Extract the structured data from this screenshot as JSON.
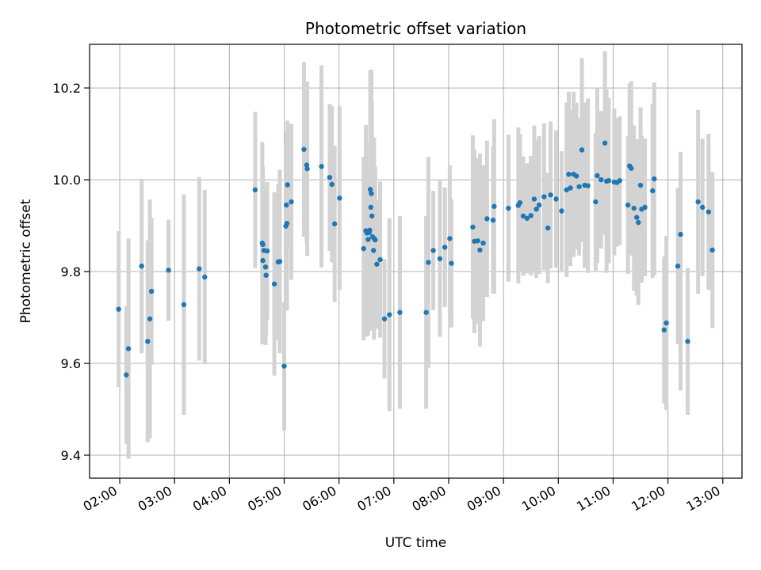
{
  "chart_data": {
    "type": "scatter",
    "title": "Photometric offset variation",
    "xlabel": "UTC time",
    "ylabel": "Photometric offset",
    "xlim": [
      1.45,
      13.35
    ],
    "ylim": [
      9.35,
      10.295
    ],
    "grid": true,
    "x_ticks": [
      2,
      3,
      4,
      5,
      6,
      7,
      8,
      9,
      10,
      11,
      12,
      13
    ],
    "x_tick_labels": [
      "02:00",
      "03:00",
      "04:00",
      "05:00",
      "06:00",
      "07:00",
      "08:00",
      "09:00",
      "10:00",
      "11:00",
      "12:00",
      "13:00"
    ],
    "y_ticks": [
      9.4,
      9.6,
      9.8,
      10.0,
      10.2
    ],
    "y_tick_labels": [
      "9.4",
      "9.6",
      "9.8",
      "10.0",
      "10.2"
    ],
    "series": [
      {
        "name": "Photometric offset",
        "marker_color": "#1f77b4",
        "errorbar_color": "#d3d3d3",
        "x": [
          1.98,
          2.12,
          2.16,
          2.4,
          2.51,
          2.55,
          2.58,
          2.89,
          3.17,
          3.45,
          3.55,
          4.47,
          4.6,
          4.61,
          4.61,
          4.63,
          4.66,
          4.67,
          4.69,
          4.82,
          4.89,
          4.92,
          5.0,
          5.03,
          5.04,
          5.05,
          5.06,
          5.13,
          5.36,
          5.41,
          5.42,
          5.68,
          5.83,
          5.87,
          5.92,
          6.01,
          6.45,
          6.49,
          6.51,
          6.53,
          6.55,
          6.56,
          6.57,
          6.58,
          6.59,
          6.6,
          6.61,
          6.63,
          6.64,
          6.66,
          6.69,
          6.75,
          6.83,
          6.92,
          7.11,
          7.59,
          7.63,
          7.72,
          7.84,
          7.93,
          8.02,
          8.05,
          8.44,
          8.47,
          8.53,
          8.57,
          8.63,
          8.7,
          8.81,
          8.83,
          9.09,
          9.27,
          9.3,
          9.36,
          9.43,
          9.5,
          9.56,
          9.6,
          9.65,
          9.74,
          9.81,
          9.86,
          9.96,
          10.06,
          10.15,
          10.19,
          10.22,
          10.28,
          10.33,
          10.38,
          10.43,
          10.48,
          10.54,
          10.68,
          10.71,
          10.78,
          10.85,
          10.88,
          10.92,
          11.02,
          11.07,
          11.12,
          11.27,
          11.3,
          11.33,
          11.38,
          11.43,
          11.46,
          11.5,
          11.52,
          11.58,
          11.72,
          11.75,
          11.93,
          11.97,
          12.18,
          12.23,
          12.36,
          12.55,
          12.63,
          12.74,
          12.81
        ],
        "y": [
          9.718,
          9.575,
          9.632,
          9.812,
          9.648,
          9.697,
          9.757,
          9.803,
          9.728,
          9.806,
          9.788,
          9.978,
          9.862,
          9.859,
          9.824,
          9.846,
          9.81,
          9.792,
          9.845,
          9.773,
          9.821,
          9.822,
          9.594,
          9.899,
          9.945,
          9.905,
          9.989,
          9.952,
          10.066,
          10.032,
          10.024,
          10.029,
          10.005,
          9.99,
          9.904,
          9.96,
          9.85,
          9.889,
          9.884,
          9.87,
          9.885,
          9.89,
          9.979,
          9.94,
          9.97,
          9.921,
          9.876,
          9.846,
          9.872,
          9.869,
          9.816,
          9.826,
          9.697,
          9.706,
          9.711,
          9.711,
          9.82,
          9.846,
          9.828,
          9.853,
          9.872,
          9.818,
          9.897,
          9.866,
          9.867,
          9.847,
          9.862,
          9.915,
          9.912,
          9.942,
          9.938,
          9.944,
          9.95,
          9.921,
          9.916,
          9.922,
          9.958,
          9.936,
          9.945,
          9.963,
          9.895,
          9.967,
          9.958,
          9.932,
          9.978,
          10.012,
          9.982,
          10.012,
          10.008,
          9.985,
          10.065,
          9.988,
          9.987,
          9.952,
          10.009,
          10.0,
          10.08,
          9.997,
          9.998,
          9.995,
          9.994,
          9.998,
          9.945,
          10.03,
          10.025,
          9.938,
          9.918,
          9.907,
          9.988,
          9.936,
          9.94,
          9.976,
          10.002,
          9.673,
          9.688,
          9.812,
          9.881,
          9.648,
          9.952,
          9.94,
          9.93,
          9.847
        ],
        "err_low": [
          0.17,
          0.15,
          0.24,
          0.19,
          0.22,
          0.26,
          0.16,
          0.11,
          0.24,
          0.2,
          0.19,
          0.17,
          0.22,
          0.17,
          0.18,
          0.14,
          0.17,
          0.13,
          0.15,
          0.2,
          0.17,
          0.2,
          0.14,
          0.18,
          0.16,
          0.19,
          0.14,
          0.17,
          0.19,
          0.17,
          0.19,
          0.22,
          0.16,
          0.17,
          0.17,
          0.2,
          0.2,
          0.23,
          0.18,
          0.21,
          0.18,
          0.19,
          0.26,
          0.26,
          0.27,
          0.25,
          0.19,
          0.16,
          0.22,
          0.16,
          0.14,
          0.17,
          0.13,
          0.21,
          0.21,
          0.21,
          0.23,
          0.13,
          0.17,
          0.13,
          0.16,
          0.14,
          0.2,
          0.2,
          0.18,
          0.21,
          0.17,
          0.17,
          0.16,
          0.19,
          0.16,
          0.17,
          0.15,
          0.13,
          0.12,
          0.13,
          0.16,
          0.15,
          0.15,
          0.16,
          0.12,
          0.16,
          0.15,
          0.13,
          0.19,
          0.18,
          0.17,
          0.18,
          0.16,
          0.15,
          0.2,
          0.18,
          0.19,
          0.15,
          0.19,
          0.15,
          0.2,
          0.2,
          0.18,
          0.16,
          0.14,
          0.14,
          0.15,
          0.18,
          0.19,
          0.18,
          0.17,
          0.18,
          0.17,
          0.16,
          0.15,
          0.19,
          0.21,
          0.16,
          0.19,
          0.17,
          0.34,
          0.16,
          0.2,
          0.15,
          0.17,
          0.17
        ],
        "err_high": [
          0.17,
          0.15,
          0.24,
          0.19,
          0.22,
          0.26,
          0.16,
          0.11,
          0.24,
          0.2,
          0.19,
          0.17,
          0.22,
          0.17,
          0.18,
          0.14,
          0.17,
          0.13,
          0.15,
          0.2,
          0.17,
          0.2,
          0.14,
          0.18,
          0.16,
          0.19,
          0.14,
          0.17,
          0.19,
          0.17,
          0.19,
          0.22,
          0.16,
          0.17,
          0.17,
          0.2,
          0.2,
          0.23,
          0.18,
          0.21,
          0.18,
          0.19,
          0.26,
          0.26,
          0.27,
          0.25,
          0.19,
          0.16,
          0.22,
          0.16,
          0.14,
          0.17,
          0.13,
          0.21,
          0.21,
          0.21,
          0.23,
          0.13,
          0.17,
          0.13,
          0.16,
          0.14,
          0.2,
          0.2,
          0.18,
          0.21,
          0.17,
          0.17,
          0.16,
          0.19,
          0.16,
          0.17,
          0.15,
          0.13,
          0.12,
          0.13,
          0.16,
          0.15,
          0.15,
          0.16,
          0.12,
          0.16,
          0.15,
          0.13,
          0.19,
          0.18,
          0.17,
          0.18,
          0.16,
          0.15,
          0.2,
          0.18,
          0.19,
          0.15,
          0.19,
          0.15,
          0.2,
          0.2,
          0.18,
          0.16,
          0.14,
          0.14,
          0.15,
          0.18,
          0.19,
          0.18,
          0.17,
          0.18,
          0.17,
          0.16,
          0.15,
          0.19,
          0.21,
          0.16,
          0.19,
          0.17,
          0.18,
          0.16,
          0.2,
          0.15,
          0.17,
          0.17
        ]
      }
    ]
  }
}
